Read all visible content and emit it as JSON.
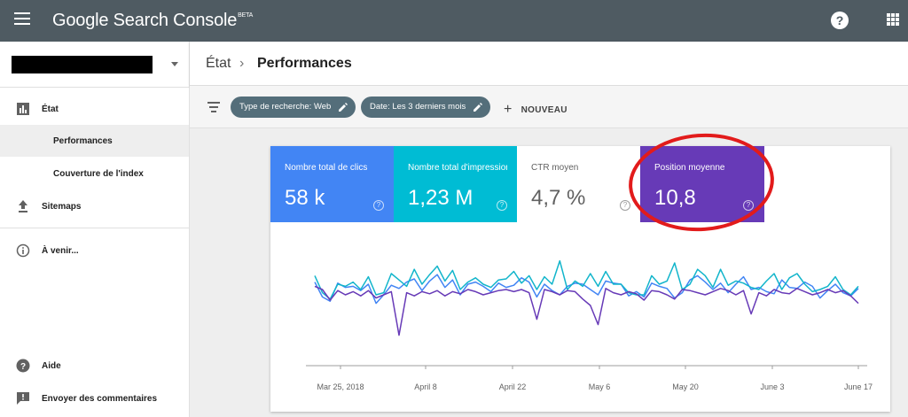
{
  "app": {
    "title": "Google Search Console",
    "badge": "BETA"
  },
  "sidebar": {
    "items": [
      {
        "label": "État",
        "icon": "bar-chart-icon"
      },
      {
        "label": "Performances"
      },
      {
        "label": "Couverture de l'index"
      },
      {
        "label": "Sitemaps",
        "icon": "upload-icon"
      },
      {
        "label": "À venir...",
        "icon": "info-icon"
      },
      {
        "label": "Aide",
        "icon": "help-icon"
      },
      {
        "label": "Envoyer des commentaires",
        "icon": "feedback-icon"
      }
    ]
  },
  "breadcrumb": {
    "parent": "État",
    "separator": "›",
    "current": "Performances"
  },
  "filters": {
    "chips": [
      {
        "label": "Type de recherche: Web"
      },
      {
        "label": "Date: Les 3 derniers mois"
      }
    ],
    "add_label": "NOUVEAU"
  },
  "metrics": [
    {
      "label": "Nombre total de clics",
      "value": "58 k",
      "color": "#4285f4",
      "selected": true
    },
    {
      "label": "Nombre total d'impressions",
      "value": "1,23 M",
      "color": "#00bcd4",
      "selected": true
    },
    {
      "label": "CTR moyen",
      "value": "4,7 %",
      "color": "#ffffff",
      "selected": false
    },
    {
      "label": "Position moyenne",
      "value": "10,8",
      "color": "#673ab7",
      "selected": true
    }
  ],
  "annotation_color": "#e21b1b",
  "chart_data": {
    "type": "line",
    "x_tick_labels": [
      "Mar 25, 2018",
      "April 8",
      "April 22",
      "May 6",
      "May 20",
      "June 3",
      "June 17"
    ],
    "series": [
      {
        "color": "#4285f4",
        "values": [
          62,
          48,
          44,
          61,
          57,
          58,
          54,
          60,
          42,
          50,
          59,
          56,
          62,
          65,
          54,
          63,
          69,
          57,
          64,
          50,
          60,
          62,
          58,
          53,
          61,
          57,
          59,
          66,
          62,
          48,
          60,
          54,
          50,
          58,
          61,
          60,
          55,
          50,
          63,
          61,
          60,
          49,
          53,
          48,
          61,
          58,
          56,
          47,
          52,
          64,
          68,
          62,
          55,
          61,
          52,
          60,
          67,
          55,
          57,
          53,
          51,
          64,
          57,
          56,
          62,
          58,
          47,
          54,
          60,
          52,
          49,
          56
        ]
      },
      {
        "color": "#12b5cb",
        "values": [
          68,
          52,
          46,
          60,
          58,
          62,
          55,
          67,
          50,
          52,
          70,
          64,
          58,
          74,
          60,
          69,
          77,
          63,
          73,
          55,
          62,
          66,
          60,
          57,
          64,
          65,
          72,
          61,
          68,
          55,
          67,
          60,
          82,
          55,
          63,
          58,
          70,
          58,
          72,
          60,
          60,
          52,
          50,
          50,
          68,
          60,
          63,
          80,
          55,
          60,
          74,
          68,
          57,
          74,
          59,
          63,
          61,
          57,
          55,
          63,
          70,
          55,
          66,
          70,
          60,
          53,
          55,
          58,
          67,
          55,
          50,
          58
        ]
      },
      {
        "color": "#673ab7",
        "values": [
          58,
          55,
          45,
          54,
          50,
          53,
          49,
          54,
          47,
          50,
          53,
          12,
          52,
          49,
          53,
          51,
          54,
          49,
          53,
          51,
          55,
          53,
          50,
          52,
          54,
          55,
          53,
          55,
          52,
          27,
          55,
          53,
          50,
          54,
          53,
          46,
          40,
          22,
          56,
          52,
          50,
          53,
          51,
          45,
          54,
          53,
          50,
          46,
          55,
          54,
          52,
          50,
          53,
          56,
          54,
          50,
          54,
          32,
          52,
          49,
          55,
          52,
          51,
          56,
          53,
          50,
          52,
          55,
          52,
          54,
          49,
          42
        ]
      }
    ]
  }
}
